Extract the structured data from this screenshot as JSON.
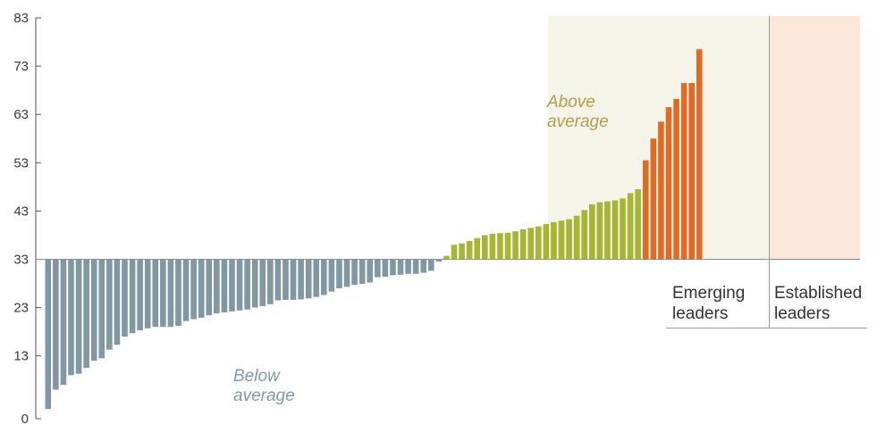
{
  "chart_data": {
    "type": "bar",
    "baseline": 33,
    "ylim": [
      0,
      83
    ],
    "yticks": [
      "0",
      "13",
      "23",
      "33",
      "43",
      "53",
      "63",
      "73",
      "83"
    ],
    "grid": false,
    "series": [
      {
        "group": "below",
        "color": "#8197a4",
        "values": [
          2,
          6,
          7,
          9,
          9.3,
          10.5,
          12,
          12.5,
          14.3,
          15.3,
          17,
          17.7,
          18.3,
          18.7,
          19,
          19,
          19,
          19.2,
          20.2,
          20.6,
          20.9,
          21.4,
          21.8,
          22,
          22.2,
          22.4,
          22.6,
          23,
          23.3,
          23.7,
          24.5,
          24.6,
          24.6,
          24.7,
          24.9,
          25.2,
          25.6,
          26.3,
          27,
          27.3,
          27.7,
          27.9,
          28.2,
          29.3,
          29.4,
          29.7,
          29.8,
          30,
          30,
          30.2,
          30.6,
          32.5
        ]
      },
      {
        "group": "above",
        "color": "#a6b534",
        "values": [
          33.7,
          36,
          36.3,
          36.8,
          37.4,
          38,
          38.3,
          38.4,
          38.5,
          38.8,
          39.2,
          39.5,
          39.8,
          40.3,
          40.7,
          41,
          41.3,
          42,
          43.2,
          44.4,
          44.8,
          45,
          45.2,
          45.6,
          46.7,
          47.5
        ]
      },
      {
        "group": "established",
        "color": "#e06b27",
        "values": [
          53.5,
          58,
          61.5,
          64.5,
          66.2,
          69.5,
          69.5,
          76.5
        ]
      }
    ],
    "annotations": {
      "above": [
        "Above",
        "average"
      ],
      "below": [
        "Below",
        "average"
      ]
    },
    "group_labels": {
      "emerging": [
        "Emerging",
        "leaders"
      ],
      "established": [
        "Established",
        "leaders"
      ]
    },
    "colors": {
      "emerging_band": "#f4f5e8",
      "established_band": "#fbe7d9",
      "above_text": "#b49d4f",
      "below_text": "#7f99a8"
    }
  }
}
